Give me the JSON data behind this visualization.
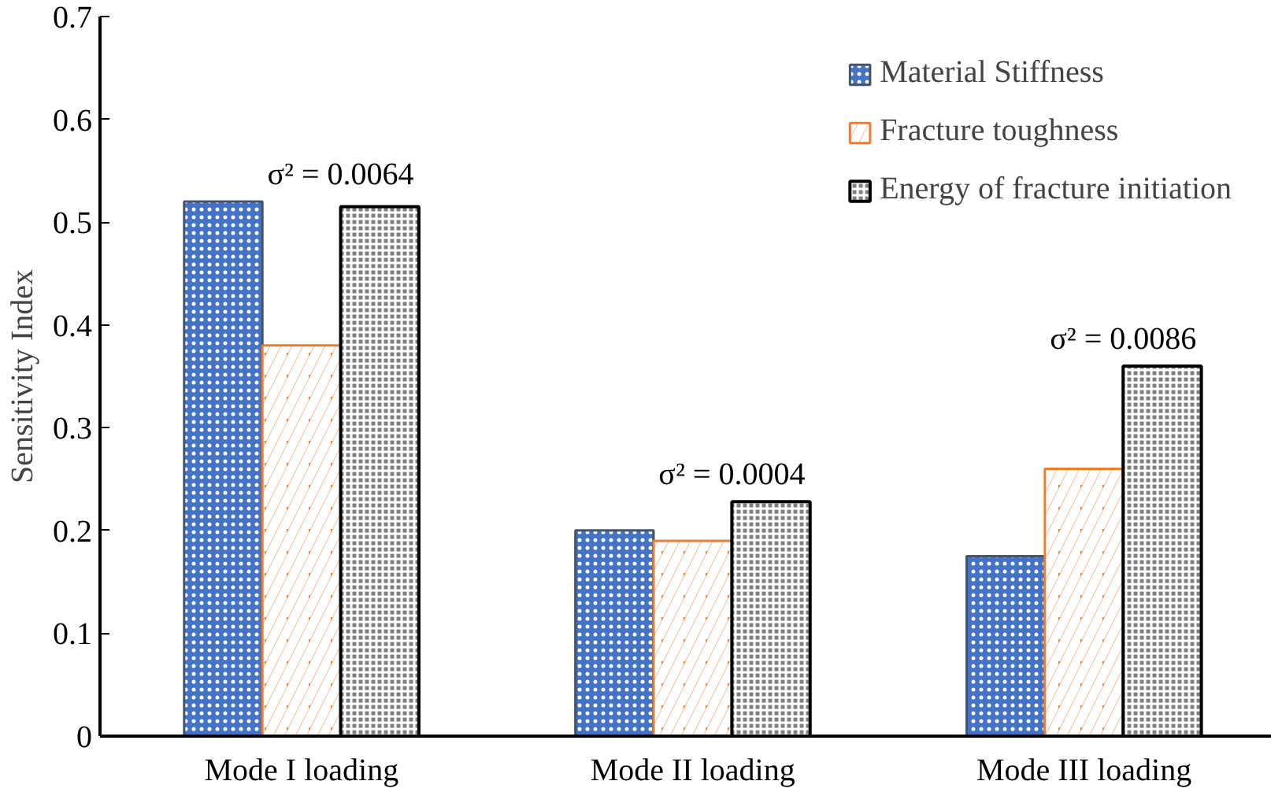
{
  "chart_data": {
    "type": "bar",
    "ylabel": "Sensitivity Index",
    "categories": [
      "Mode I loading",
      "Mode II loading",
      "Mode III loading"
    ],
    "series": [
      {
        "name": "Material Stiffness",
        "color": "#4472c4",
        "values": [
          0.52,
          0.2,
          0.175
        ]
      },
      {
        "name": "Fracture toughness",
        "color": "#ed7d31",
        "values": [
          0.38,
          0.19,
          0.26
        ]
      },
      {
        "name": "Energy of fracture initiation",
        "color": "#7f7f7f",
        "values": [
          0.515,
          0.228,
          0.36
        ]
      }
    ],
    "ylim": [
      0,
      0.7
    ],
    "yticks": [
      0,
      0.1,
      0.2,
      0.3,
      0.4,
      0.5,
      0.6,
      0.7
    ],
    "grid": false,
    "legend": "top right",
    "annotations": [
      "σ² = 0.0064",
      "σ² = 0.0004",
      "σ² = 0.0086"
    ]
  }
}
